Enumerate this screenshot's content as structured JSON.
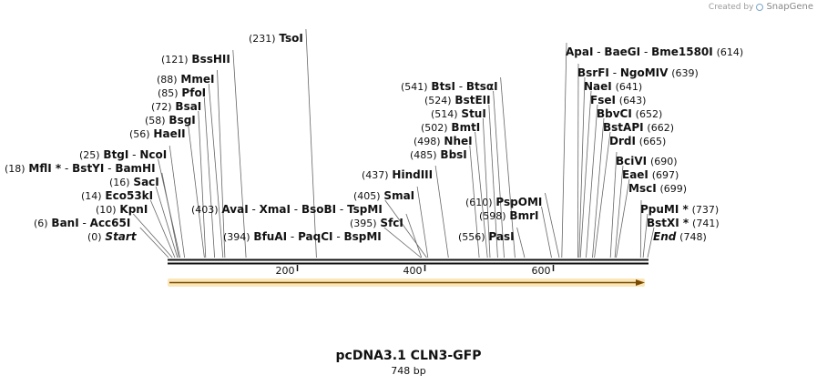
{
  "credit": {
    "prefix": "Created by",
    "brand": "SnapGene"
  },
  "map": {
    "title": "pcDNA3.1 CLN3-GFP",
    "length_label": "748 bp",
    "length": 748,
    "ticks": [
      {
        "pos": 200,
        "label": "200"
      },
      {
        "pos": 400,
        "label": "400"
      },
      {
        "pos": 600,
        "label": "600"
      }
    ],
    "feature": {
      "name": "orf-arrow",
      "start": 0,
      "end": 748,
      "color": "#f5b942"
    },
    "sites": [
      {
        "num": "(0)",
        "names": [
          "Start"
        ],
        "pos": 0,
        "italic": true
      },
      {
        "num": "(6)",
        "names": [
          "BanI",
          "Acc65I"
        ],
        "pos": 6
      },
      {
        "num": "(10)",
        "names": [
          "KpnI"
        ],
        "pos": 10
      },
      {
        "num": "(14)",
        "names": [
          "Eco53kI"
        ],
        "pos": 14
      },
      {
        "num": "(16)",
        "names": [
          "SacI"
        ],
        "pos": 16
      },
      {
        "num": "(18)",
        "names": [
          "MflI *",
          "BstYI",
          "BamHI"
        ],
        "pos": 18
      },
      {
        "num": "(25)",
        "names": [
          "BtgI",
          "NcoI"
        ],
        "pos": 25
      },
      {
        "num": "(56)",
        "names": [
          "HaeII"
        ],
        "pos": 56
      },
      {
        "num": "(58)",
        "names": [
          "BsgI"
        ],
        "pos": 58
      },
      {
        "num": "(72)",
        "names": [
          "BsaI"
        ],
        "pos": 72
      },
      {
        "num": "(85)",
        "names": [
          "PfoI"
        ],
        "pos": 85
      },
      {
        "num": "(88)",
        "names": [
          "MmeI"
        ],
        "pos": 88
      },
      {
        "num": "(121)",
        "names": [
          "BssHII"
        ],
        "pos": 121
      },
      {
        "num": "(231)",
        "names": [
          "TsoI"
        ],
        "pos": 231
      },
      {
        "num": "(394)",
        "names": [
          "BfuAI",
          "PaqCI",
          "BspMI"
        ],
        "pos": 394
      },
      {
        "num": "(395)",
        "names": [
          "SfcI"
        ],
        "pos": 395
      },
      {
        "num": "(403)",
        "names": [
          "AvaI",
          "XmaI",
          "BsoBI",
          "TspMI"
        ],
        "pos": 403
      },
      {
        "num": "(405)",
        "names": [
          "SmaI"
        ],
        "pos": 405
      },
      {
        "num": "(437)",
        "names": [
          "HindIII"
        ],
        "pos": 437
      },
      {
        "num": "(485)",
        "names": [
          "BbsI"
        ],
        "pos": 485
      },
      {
        "num": "(498)",
        "names": [
          "NheI"
        ],
        "pos": 498
      },
      {
        "num": "(502)",
        "names": [
          "BmtI"
        ],
        "pos": 502
      },
      {
        "num": "(514)",
        "names": [
          "StuI"
        ],
        "pos": 514
      },
      {
        "num": "(524)",
        "names": [
          "BstEII"
        ],
        "pos": 524
      },
      {
        "num": "(541)",
        "names": [
          "BtsI",
          "BtsαI"
        ],
        "pos": 541
      },
      {
        "num": "(556)",
        "names": [
          "PasI"
        ],
        "pos": 556
      },
      {
        "num": "(598)",
        "names": [
          "BmrI"
        ],
        "pos": 598
      },
      {
        "num": "(610)",
        "names": [
          "PspOMI"
        ],
        "pos": 610
      },
      {
        "num": "(614)",
        "names": [
          "ApaI",
          "BaeGI",
          "Bme1580I"
        ],
        "pos": 614,
        "numAfter": true
      },
      {
        "num": "(639)",
        "names": [
          "BsrFI",
          "NgoMIV"
        ],
        "pos": 639,
        "numAfter": true
      },
      {
        "num": "(641)",
        "names": [
          "NaeI"
        ],
        "pos": 641,
        "numAfter": true
      },
      {
        "num": "(643)",
        "names": [
          "FseI"
        ],
        "pos": 643,
        "numAfter": true
      },
      {
        "num": "(652)",
        "names": [
          "BbvCI"
        ],
        "pos": 652,
        "numAfter": true
      },
      {
        "num": "(662)",
        "names": [
          "BstAPI"
        ],
        "pos": 662,
        "numAfter": true
      },
      {
        "num": "(665)",
        "names": [
          "DrdI"
        ],
        "pos": 665,
        "numAfter": true
      },
      {
        "num": "(690)",
        "names": [
          "BciVI"
        ],
        "pos": 690,
        "numAfter": true
      },
      {
        "num": "(697)",
        "names": [
          "EaeI"
        ],
        "pos": 697,
        "numAfter": true
      },
      {
        "num": "(699)",
        "names": [
          "MscI"
        ],
        "pos": 699,
        "numAfter": true
      },
      {
        "num": "(737)",
        "names": [
          "PpuMI *"
        ],
        "pos": 737,
        "numAfter": true
      },
      {
        "num": "(741)",
        "names": [
          "BstXI *"
        ],
        "pos": 741,
        "numAfter": true
      },
      {
        "num": "(748)",
        "names": [
          "End"
        ],
        "pos": 748,
        "numAfter": true,
        "italic": true
      }
    ]
  }
}
